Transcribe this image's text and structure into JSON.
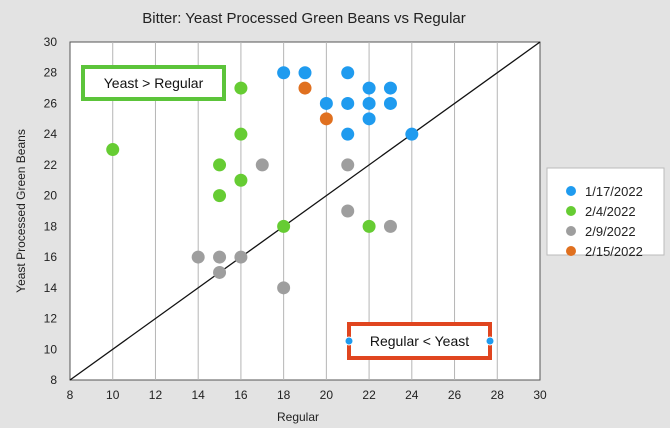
{
  "chart_data": {
    "type": "scatter",
    "title": "Bitter: Yeast Processed Green Beans vs Regular",
    "xlabel": "Regular",
    "ylabel": "Yeast Processed Green Beans",
    "xlim": [
      8,
      30
    ],
    "ylim": [
      8,
      30
    ],
    "xticks": [
      8,
      10,
      12,
      14,
      16,
      18,
      20,
      22,
      24,
      26,
      28,
      30
    ],
    "yticks": [
      8,
      10,
      12,
      14,
      16,
      18,
      20,
      22,
      24,
      26,
      28,
      30
    ],
    "grid": "vertical",
    "legend_position": "right",
    "reference_line": "y = x",
    "series": [
      {
        "name": "1/17/2022",
        "color": "#1f9bef",
        "points": [
          [
            18,
            28
          ],
          [
            19,
            28
          ],
          [
            21,
            28
          ],
          [
            20,
            26
          ],
          [
            21,
            26
          ],
          [
            22,
            27
          ],
          [
            22,
            26
          ],
          [
            23,
            27
          ],
          [
            23,
            26
          ],
          [
            22,
            25
          ],
          [
            21,
            24
          ],
          [
            24,
            24
          ]
        ]
      },
      {
        "name": "2/4/2022",
        "color": "#66cc33",
        "points": [
          [
            10,
            23
          ],
          [
            15,
            22
          ],
          [
            15,
            20
          ],
          [
            16,
            27
          ],
          [
            16,
            24
          ],
          [
            16,
            21
          ],
          [
            18,
            18
          ],
          [
            22,
            18
          ]
        ]
      },
      {
        "name": "2/9/2022",
        "color": "#9e9e9e",
        "points": [
          [
            14,
            16
          ],
          [
            15,
            16
          ],
          [
            15,
            15
          ],
          [
            16,
            16
          ],
          [
            17,
            22
          ],
          [
            18,
            14
          ],
          [
            21,
            22
          ],
          [
            21,
            19
          ],
          [
            23,
            18
          ]
        ]
      },
      {
        "name": "2/15/2022",
        "color": "#e0701f",
        "points": [
          [
            19,
            27
          ],
          [
            20,
            25
          ]
        ]
      }
    ],
    "annotations": [
      {
        "text": "Yeast > Regular",
        "border_color": "#5cc43a"
      },
      {
        "text": "Regular < Yeast",
        "border_color": "#e0451f"
      }
    ]
  }
}
